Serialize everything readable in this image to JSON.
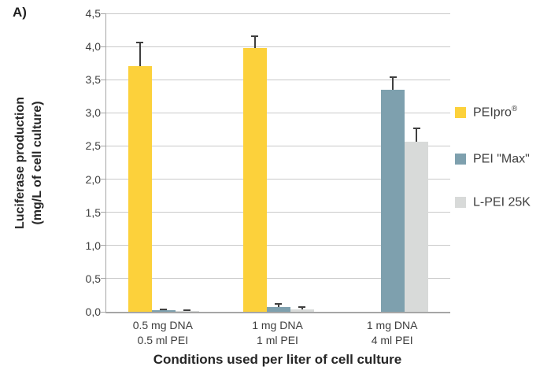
{
  "panel_label": "A)",
  "y_axis": {
    "title_line1": "Luciferase production",
    "title_line2": "(mg/L of cell culture)",
    "tick_labels": [
      "4,5",
      "4,0",
      "3,5",
      "3,0",
      "2,5",
      "2,0",
      "1,5",
      "1,0",
      "0,5",
      "0,0"
    ]
  },
  "x_axis": {
    "title": "Conditions used per liter of cell culture",
    "categories": [
      {
        "line1": "0.5 mg DNA",
        "line2": "0.5 ml PEI"
      },
      {
        "line1": "1 mg DNA",
        "line2": "1 ml PEI"
      },
      {
        "line1": "1 mg DNA",
        "line2": "4 ml PEI"
      }
    ]
  },
  "legend": {
    "items": [
      {
        "text": "PEIpro",
        "sup": "®",
        "color": "#FCD13B"
      },
      {
        "text": "PEI \"Max\"",
        "sup": "",
        "color": "#7EA0AE"
      },
      {
        "text": "L-PEI 25K",
        "sup": "",
        "color": "#D8DAD9"
      }
    ]
  },
  "chart_data": {
    "type": "bar",
    "title": "",
    "categories": [
      "0.5 mg DNA / 0.5 ml PEI",
      "1 mg DNA / 1 ml PEI",
      "1 mg DNA / 4 ml PEI"
    ],
    "series": [
      {
        "name": "PEIpro®",
        "color": "#FCD13B",
        "values": [
          3.71,
          3.98,
          null
        ],
        "errors_plus": [
          0.35,
          0.18,
          null
        ]
      },
      {
        "name": "PEI \"Max\"",
        "color": "#7EA0AE",
        "values": [
          0.02,
          0.07,
          3.35
        ],
        "errors_plus": [
          0.02,
          0.05,
          0.19
        ]
      },
      {
        "name": "L-PEI 25K",
        "color": "#D8DAD9",
        "values": [
          0.01,
          0.04,
          2.57
        ],
        "errors_plus": [
          0.015,
          0.03,
          0.2
        ]
      }
    ],
    "ylabel": "Luciferase production (mg/L of cell culture)",
    "xlabel": "Conditions used per liter of cell culture",
    "ylim": [
      0,
      4.5
    ],
    "ytick_step": 0.5,
    "grid": true,
    "legend_position": "right",
    "error_bars": "upper"
  },
  "style_colors": {
    "gridline": "#c9c9c9",
    "axis": "#a6a6a6",
    "error_bar": "#3f3f3f"
  }
}
